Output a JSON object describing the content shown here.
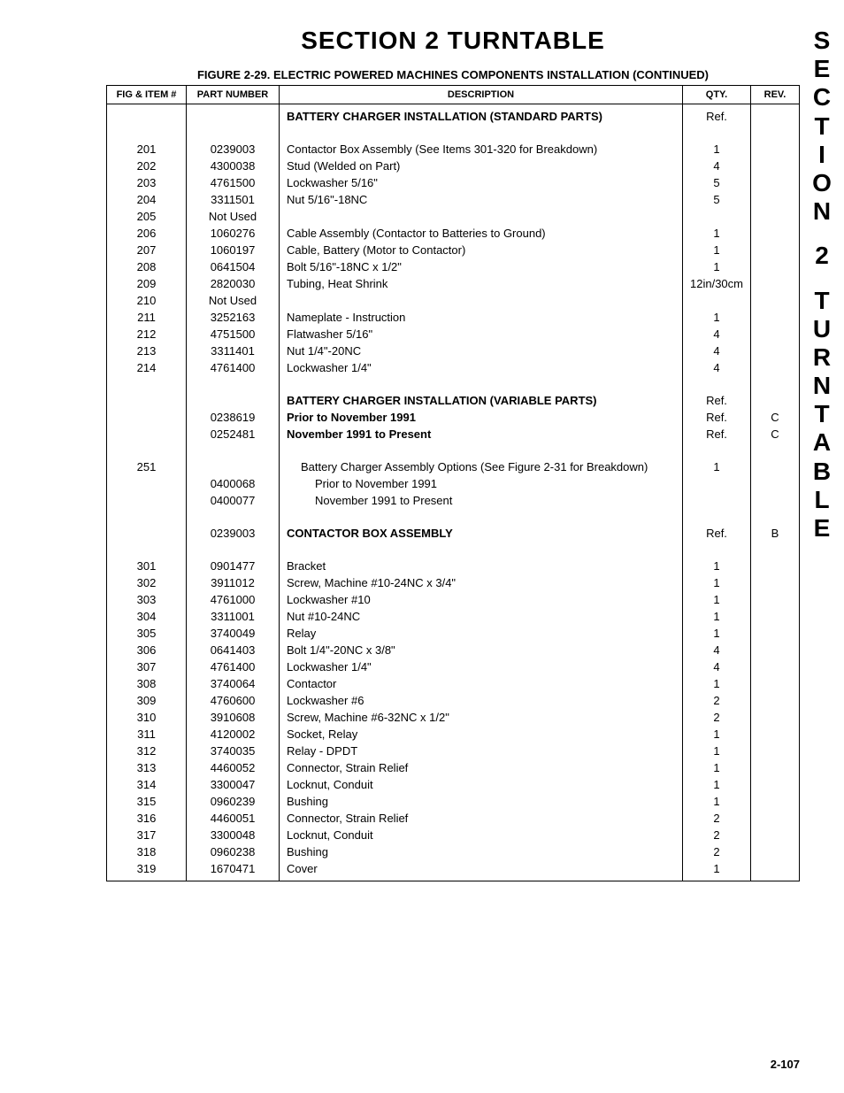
{
  "section_title": "SECTION 2   TURNTABLE",
  "figure_title": "FIGURE 2-29.  ELECTRIC POWERED MACHINES COMPONENTS INSTALLATION (CONTINUED)",
  "side_tab_text": "SECTION 2 TURNTABLE",
  "page_number": "2-107",
  "columns": {
    "fig": "FIG & ITEM #",
    "part": "PART NUMBER",
    "desc": "DESCRIPTION",
    "qty": "QTY.",
    "rev": "REV."
  },
  "rows": [
    {
      "fig": "",
      "part": "",
      "desc": "BATTERY CHARGER INSTALLATION (STANDARD PARTS)",
      "qty": "Ref.",
      "rev": "",
      "bold": true,
      "indent": 0
    },
    {
      "spacer": true
    },
    {
      "fig": "201",
      "part": "0239003",
      "desc": "Contactor Box Assembly (See Items 301-320 for Breakdown)",
      "qty": "1",
      "rev": "",
      "indent": 0
    },
    {
      "fig": "202",
      "part": "4300038",
      "desc": "Stud (Welded on Part)",
      "qty": "4",
      "rev": "",
      "indent": 0
    },
    {
      "fig": "203",
      "part": "4761500",
      "desc": "Lockwasher 5/16\"",
      "qty": "5",
      "rev": "",
      "indent": 0
    },
    {
      "fig": "204",
      "part": "3311501",
      "desc": "Nut 5/16\"-18NC",
      "qty": "5",
      "rev": "",
      "indent": 0
    },
    {
      "fig": "205",
      "part": "Not Used",
      "desc": "",
      "qty": "",
      "rev": "",
      "indent": 0
    },
    {
      "fig": "206",
      "part": "1060276",
      "desc": "Cable Assembly (Contactor to Batteries to Ground)",
      "qty": "1",
      "rev": "",
      "indent": 0
    },
    {
      "fig": "207",
      "part": "1060197",
      "desc": "Cable, Battery (Motor to Contactor)",
      "qty": "1",
      "rev": "",
      "indent": 0
    },
    {
      "fig": "208",
      "part": "0641504",
      "desc": "Bolt 5/16\"-18NC x 1/2\"",
      "qty": "1",
      "rev": "",
      "indent": 0
    },
    {
      "fig": "209",
      "part": "2820030",
      "desc": "Tubing, Heat Shrink",
      "qty": "12in/30cm",
      "rev": "",
      "indent": 0
    },
    {
      "fig": "210",
      "part": "Not Used",
      "desc": "",
      "qty": "",
      "rev": "",
      "indent": 0
    },
    {
      "fig": "211",
      "part": "3252163",
      "desc": "Nameplate - Instruction",
      "qty": "1",
      "rev": "",
      "indent": 0
    },
    {
      "fig": "212",
      "part": "4751500",
      "desc": "Flatwasher 5/16\"",
      "qty": "4",
      "rev": "",
      "indent": 0
    },
    {
      "fig": "213",
      "part": "3311401",
      "desc": "Nut 1/4\"-20NC",
      "qty": "4",
      "rev": "",
      "indent": 0
    },
    {
      "fig": "214",
      "part": "4761400",
      "desc": "Lockwasher 1/4\"",
      "qty": "4",
      "rev": "",
      "indent": 0
    },
    {
      "spacer": true
    },
    {
      "fig": "",
      "part": "",
      "desc": "BATTERY CHARGER INSTALLATION (VARIABLE PARTS)",
      "qty": "Ref.",
      "rev": "",
      "bold": true,
      "indent": 0
    },
    {
      "fig": "",
      "part": "0238619",
      "desc": "Prior to November 1991",
      "qty": "Ref.",
      "rev": "C",
      "bold": true,
      "indent": 0
    },
    {
      "fig": "",
      "part": "0252481",
      "desc": "November 1991 to Present",
      "qty": "Ref.",
      "rev": "C",
      "bold": true,
      "indent": 0
    },
    {
      "spacer": true
    },
    {
      "fig": "251",
      "part": "",
      "desc": "Battery Charger Assembly Options (See Figure 2-31 for Breakdown)",
      "qty": "1",
      "rev": "",
      "indent": 1
    },
    {
      "fig": "",
      "part": "0400068",
      "desc": "Prior to November 1991",
      "qty": "",
      "rev": "",
      "indent": 2
    },
    {
      "fig": "",
      "part": "0400077",
      "desc": "November 1991 to Present",
      "qty": "",
      "rev": "",
      "indent": 2
    },
    {
      "spacer": true
    },
    {
      "fig": "",
      "part": "0239003",
      "desc": "CONTACTOR BOX ASSEMBLY",
      "qty": "Ref.",
      "rev": "B",
      "bold": true,
      "indent": 0
    },
    {
      "spacer": true
    },
    {
      "fig": "301",
      "part": "0901477",
      "desc": "Bracket",
      "qty": "1",
      "rev": "",
      "indent": 0
    },
    {
      "fig": "302",
      "part": "3911012",
      "desc": "Screw, Machine #10-24NC x 3/4\"",
      "qty": "1",
      "rev": "",
      "indent": 0
    },
    {
      "fig": "303",
      "part": "4761000",
      "desc": "Lockwasher #10",
      "qty": "1",
      "rev": "",
      "indent": 0
    },
    {
      "fig": "304",
      "part": "3311001",
      "desc": "Nut #10-24NC",
      "qty": "1",
      "rev": "",
      "indent": 0
    },
    {
      "fig": "305",
      "part": "3740049",
      "desc": "Relay",
      "qty": "1",
      "rev": "",
      "indent": 0
    },
    {
      "fig": "306",
      "part": "0641403",
      "desc": "Bolt 1/4\"-20NC x 3/8\"",
      "qty": "4",
      "rev": "",
      "indent": 0
    },
    {
      "fig": "307",
      "part": "4761400",
      "desc": "Lockwasher 1/4\"",
      "qty": "4",
      "rev": "",
      "indent": 0
    },
    {
      "fig": "308",
      "part": "3740064",
      "desc": "Contactor",
      "qty": "1",
      "rev": "",
      "indent": 0
    },
    {
      "fig": "309",
      "part": "4760600",
      "desc": "Lockwasher #6",
      "qty": "2",
      "rev": "",
      "indent": 0
    },
    {
      "fig": "310",
      "part": "3910608",
      "desc": "Screw, Machine #6-32NC x 1/2\"",
      "qty": "2",
      "rev": "",
      "indent": 0
    },
    {
      "fig": "311",
      "part": "4120002",
      "desc": "Socket, Relay",
      "qty": "1",
      "rev": "",
      "indent": 0
    },
    {
      "fig": "312",
      "part": "3740035",
      "desc": "Relay - DPDT",
      "qty": "1",
      "rev": "",
      "indent": 0
    },
    {
      "fig": "313",
      "part": "4460052",
      "desc": "Connector, Strain Relief",
      "qty": "1",
      "rev": "",
      "indent": 0
    },
    {
      "fig": "314",
      "part": "3300047",
      "desc": "Locknut, Conduit",
      "qty": "1",
      "rev": "",
      "indent": 0
    },
    {
      "fig": "315",
      "part": "0960239",
      "desc": "Bushing",
      "qty": "1",
      "rev": "",
      "indent": 0
    },
    {
      "fig": "316",
      "part": "4460051",
      "desc": "Connector, Strain Relief",
      "qty": "2",
      "rev": "",
      "indent": 0
    },
    {
      "fig": "317",
      "part": "3300048",
      "desc": "Locknut, Conduit",
      "qty": "2",
      "rev": "",
      "indent": 0
    },
    {
      "fig": "318",
      "part": "0960238",
      "desc": "Bushing",
      "qty": "2",
      "rev": "",
      "indent": 0
    },
    {
      "fig": "319",
      "part": "1670471",
      "desc": "Cover",
      "qty": "1",
      "rev": "",
      "indent": 0
    }
  ]
}
